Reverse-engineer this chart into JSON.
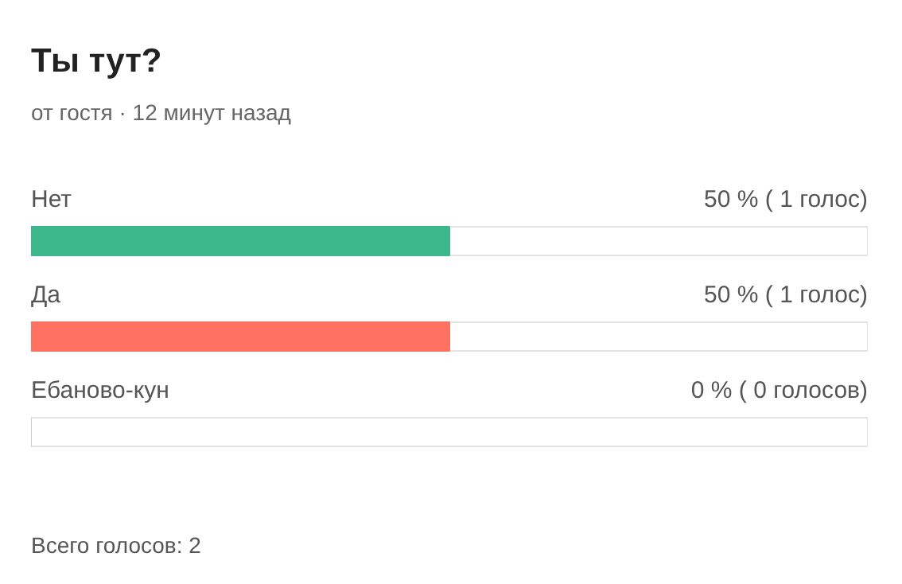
{
  "chart_data": {
    "type": "bar",
    "orientation": "horizontal",
    "title": "Ты тут?",
    "subtitle": "от гостя · 12 минут назад",
    "categories": [
      "Нет",
      "Да",
      "Ебаново-кун"
    ],
    "values": [
      50,
      50,
      0
    ],
    "colors": [
      "#3db88b",
      "#ff7262",
      "#cccccc"
    ],
    "value_labels": [
      "50 % ( 1 голос)",
      "50 % ( 1 голос)",
      "0 % ( 0 голосов)"
    ],
    "xlim": [
      0,
      100
    ],
    "tick_labels": false,
    "grid": false,
    "annotations": [
      "Всего голосов: 2"
    ]
  }
}
